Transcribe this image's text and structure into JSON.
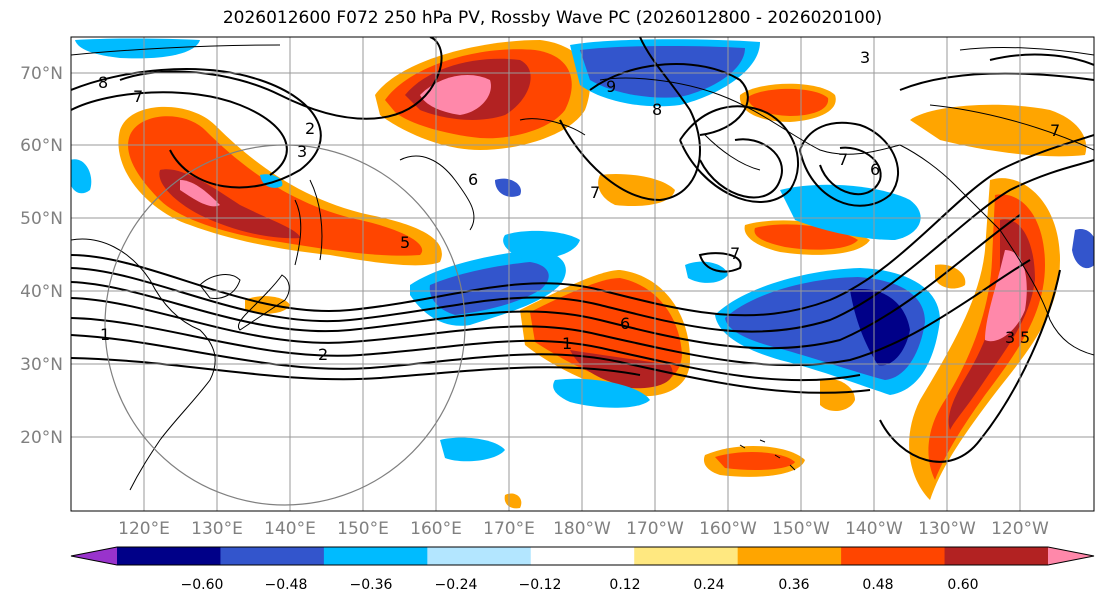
{
  "title": "2026012600 F072 250 hPa PV, Rossby Wave PC (2026012800 - 2026020100)",
  "lat_labels": [
    "70°N",
    "60°N",
    "50°N",
    "40°N",
    "30°N",
    "20°N"
  ],
  "lon_labels": [
    "120°E",
    "130°E",
    "140°E",
    "150°E",
    "160°E",
    "170°E",
    "180°W",
    "170°W",
    "160°W",
    "150°W",
    "140°W",
    "130°W",
    "120°W"
  ],
  "colorbar": {
    "colors": [
      "#9933cc",
      "#000088",
      "#3355cc",
      "#00bbff",
      "#b3e6ff",
      "#ffffff",
      "#ffe880",
      "#ffa500",
      "#ff4500",
      "#b22222",
      "#ff88aa"
    ],
    "tick_labels": [
      "−0.60",
      "−0.48",
      "−0.36",
      "−0.24",
      "−0.12",
      "0.12",
      "0.24",
      "0.36",
      "0.48",
      "0.60"
    ]
  },
  "contour_labels": [
    "8",
    "7",
    "2",
    "3",
    "5",
    "6",
    "7",
    "1",
    "1",
    "2",
    "6",
    "7",
    "9",
    "8",
    "3",
    "7",
    "6",
    "7",
    "3",
    "5"
  ]
}
